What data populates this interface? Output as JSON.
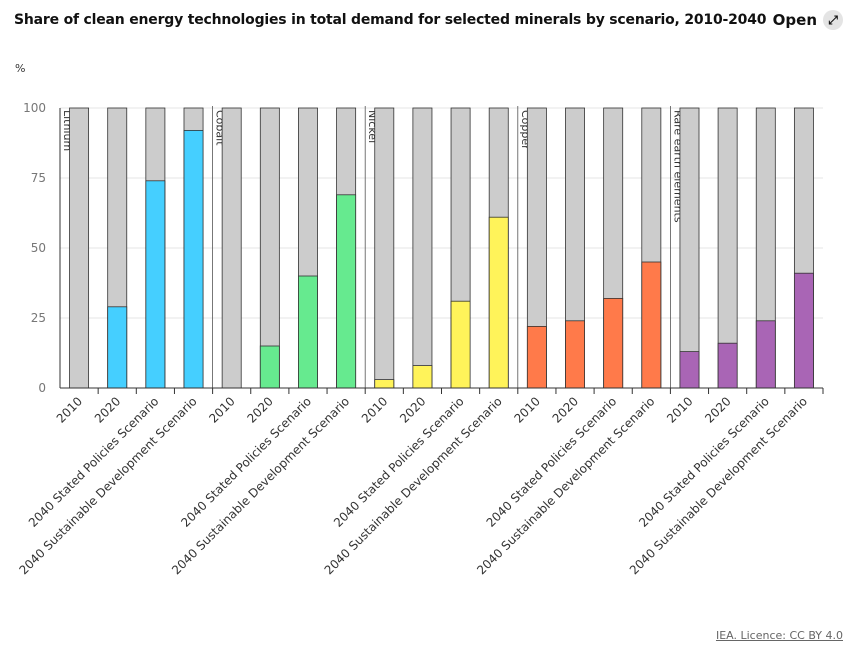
{
  "header": {
    "button": "Open"
  },
  "source": "IEA. Licence: CC BY 4.0",
  "chart_data": {
    "type": "bar",
    "title": "Share of clean energy technologies in total demand for selected minerals by scenario, 2010-2040",
    "y_label": "%",
    "groups": [
      {
        "name": "Lithium",
        "color": "#45cfff",
        "categories": [
          "2010",
          "2020",
          "2040 Stated Policies Scenario",
          "2040 Sustainable Development Scenario"
        ],
        "values": [
          0,
          29,
          74,
          92
        ]
      },
      {
        "name": "Cobalt",
        "color": "#66ea8f",
        "categories": [
          "2010",
          "2020",
          "2040 Stated Policies Scenario",
          "2040 Sustainable Development Scenario"
        ],
        "values": [
          0,
          15,
          40,
          69
        ]
      },
      {
        "name": "Nickel",
        "color": "#fff35a",
        "categories": [
          "2010",
          "2020",
          "2040 Stated Policies Scenario",
          "2040 Sustainable Development Scenario"
        ],
        "values": [
          3,
          8,
          31,
          61
        ]
      },
      {
        "name": "Copper",
        "color": "#ff7a4a",
        "categories": [
          "2010",
          "2020",
          "2040 Stated Policies Scenario",
          "2040 Sustainable Development Scenario"
        ],
        "values": [
          22,
          24,
          32,
          45
        ]
      },
      {
        "name": "Rare earth elements",
        "color": "#a965b5",
        "categories": [
          "2010",
          "2020",
          "2040 Stated Policies Scenario",
          "2040 Sustainable Development Scenario"
        ],
        "values": [
          13,
          16,
          24,
          41
        ]
      }
    ],
    "ylim": [
      0,
      100
    ],
    "yticks": [
      0,
      25,
      50,
      75,
      100
    ],
    "grid": true
  }
}
